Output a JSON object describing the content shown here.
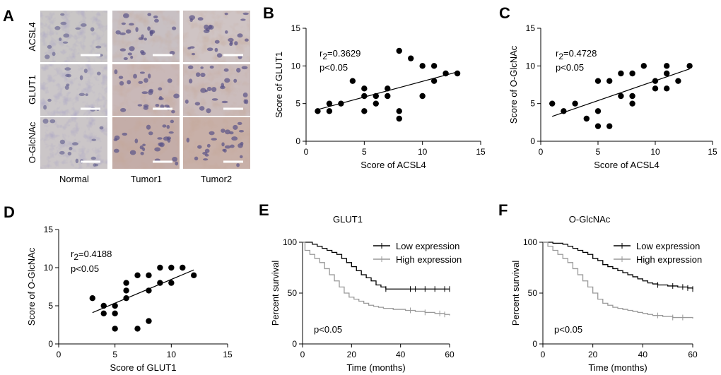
{
  "panel_labels": {
    "A": "A",
    "B": "B",
    "C": "C",
    "D": "D",
    "E": "E",
    "F": "F"
  },
  "histology": {
    "rows": [
      "ACSL4",
      "GLUT1",
      "O-GlcNAc"
    ],
    "columns": [
      "Normal",
      "Tumor1",
      "Tumor2"
    ]
  },
  "chart_data": [
    {
      "id": "B",
      "type": "scatter",
      "xlabel": "Score of ACSL4",
      "ylabel": "Score of GLUT1",
      "xlim": [
        0,
        15
      ],
      "ylim": [
        0,
        15
      ],
      "xticks": [
        0,
        5,
        10,
        15
      ],
      "yticks": [
        0,
        5,
        10,
        15
      ],
      "xtick_labels": [
        "0",
        "5",
        "10",
        "15"
      ],
      "ytick_labels": [
        "0",
        "5",
        "10",
        "15"
      ],
      "annotation": {
        "r_label": "r",
        "r_sub": "2",
        "r_value": "=0.3629",
        "p": "p<0.05"
      },
      "points": [
        [
          1,
          4
        ],
        [
          2,
          4
        ],
        [
          2,
          5
        ],
        [
          3,
          5
        ],
        [
          4,
          8
        ],
        [
          5,
          4
        ],
        [
          5,
          6
        ],
        [
          5,
          7
        ],
        [
          6,
          5
        ],
        [
          6,
          6
        ],
        [
          7,
          6
        ],
        [
          7,
          7
        ],
        [
          8,
          3
        ],
        [
          8,
          4
        ],
        [
          8,
          12
        ],
        [
          9,
          11
        ],
        [
          10,
          6
        ],
        [
          10,
          10
        ],
        [
          11,
          8
        ],
        [
          11,
          10
        ],
        [
          12,
          9
        ],
        [
          13,
          9
        ]
      ],
      "fit": [
        [
          1,
          4.2
        ],
        [
          13,
          9.2
        ]
      ]
    },
    {
      "id": "C",
      "type": "scatter",
      "xlabel": "Score of ACSL4",
      "ylabel": "Score of O-GlcNAc",
      "xlim": [
        0,
        15
      ],
      "ylim": [
        0,
        15
      ],
      "xticks": [
        0,
        5,
        10,
        15
      ],
      "yticks": [
        0,
        5,
        10,
        15
      ],
      "xtick_labels": [
        "0",
        "5",
        "10",
        "15"
      ],
      "ytick_labels": [
        "0",
        "5",
        "10",
        "15"
      ],
      "annotation": {
        "r_label": "r",
        "r_sub": "2",
        "r_value": "=0.4728",
        "p": "p<0.05"
      },
      "points": [
        [
          1,
          5
        ],
        [
          2,
          4
        ],
        [
          3,
          5
        ],
        [
          4,
          3
        ],
        [
          5,
          2
        ],
        [
          5,
          4
        ],
        [
          5,
          8
        ],
        [
          6,
          2
        ],
        [
          6,
          8
        ],
        [
          7,
          6
        ],
        [
          7,
          9
        ],
        [
          8,
          5
        ],
        [
          8,
          6
        ],
        [
          8,
          9
        ],
        [
          9,
          10
        ],
        [
          10,
          7
        ],
        [
          10,
          8
        ],
        [
          11,
          7
        ],
        [
          11,
          9
        ],
        [
          11,
          10
        ],
        [
          12,
          8
        ],
        [
          13,
          10
        ]
      ],
      "fit": [
        [
          1,
          3.3
        ],
        [
          13,
          9.6
        ]
      ]
    },
    {
      "id": "D",
      "type": "scatter",
      "xlabel": "Score of GLUT1",
      "ylabel": "Score of O-GlcNAc",
      "xlim": [
        0,
        15
      ],
      "ylim": [
        0,
        15
      ],
      "xticks": [
        0,
        5,
        10,
        15
      ],
      "yticks": [
        0,
        5,
        10,
        15
      ],
      "xtick_labels": [
        "0",
        "5",
        "10",
        "15"
      ],
      "ytick_labels": [
        "0",
        "5",
        "10",
        "15"
      ],
      "annotation": {
        "r_label": "r",
        "r_sub": "2",
        "r_value": "=0.4188",
        "p": "p<0.05"
      },
      "points": [
        [
          3,
          6
        ],
        [
          4,
          4
        ],
        [
          4,
          5
        ],
        [
          5,
          2
        ],
        [
          5,
          4
        ],
        [
          5,
          5
        ],
        [
          6,
          6
        ],
        [
          6,
          7
        ],
        [
          6,
          8
        ],
        [
          7,
          2
        ],
        [
          7,
          9
        ],
        [
          8,
          3
        ],
        [
          8,
          7
        ],
        [
          8,
          9
        ],
        [
          9,
          8
        ],
        [
          9,
          10
        ],
        [
          10,
          8
        ],
        [
          10,
          10
        ],
        [
          11,
          10
        ],
        [
          12,
          9
        ]
      ],
      "fit": [
        [
          3,
          4.1
        ],
        [
          12,
          9.7
        ]
      ]
    },
    {
      "id": "E",
      "type": "line",
      "title": "GLUT1",
      "xlabel": "Time (months)",
      "ylabel": "Percent survival",
      "xlim": [
        0,
        60
      ],
      "ylim": [
        0,
        100
      ],
      "xticks": [
        0,
        20,
        40,
        60
      ],
      "yticks": [
        0,
        50,
        100
      ],
      "xtick_labels": [
        "0",
        "20",
        "40",
        "60"
      ],
      "ytick_labels": [
        "0",
        "50",
        "100"
      ],
      "p": "p<0.05",
      "series": [
        {
          "name": "Low expression",
          "color": "#000000",
          "steps": [
            [
              0,
              100
            ],
            [
              2,
              100
            ],
            [
              4,
              98
            ],
            [
              6,
              96
            ],
            [
              8,
              94
            ],
            [
              10,
              92
            ],
            [
              12,
              90
            ],
            [
              14,
              88
            ],
            [
              16,
              84
            ],
            [
              18,
              80
            ],
            [
              20,
              76
            ],
            [
              22,
              72
            ],
            [
              24,
              68
            ],
            [
              26,
              65
            ],
            [
              28,
              62
            ],
            [
              30,
              58
            ],
            [
              32,
              56
            ],
            [
              34,
              54
            ],
            [
              60,
              54
            ]
          ],
          "censors": [
            34,
            44,
            46,
            50,
            54,
            58,
            60
          ]
        },
        {
          "name": "High expression",
          "color": "#999999",
          "steps": [
            [
              0,
              100
            ],
            [
              1,
              92
            ],
            [
              3,
              88
            ],
            [
              5,
              84
            ],
            [
              7,
              80
            ],
            [
              9,
              74
            ],
            [
              11,
              68
            ],
            [
              13,
              62
            ],
            [
              15,
              56
            ],
            [
              17,
              50
            ],
            [
              19,
              46
            ],
            [
              21,
              44
            ],
            [
              23,
              42
            ],
            [
              25,
              40
            ],
            [
              27,
              38
            ],
            [
              29,
              37
            ],
            [
              31,
              36
            ],
            [
              33,
              35
            ],
            [
              35,
              35
            ],
            [
              37,
              34
            ],
            [
              39,
              34
            ],
            [
              42,
              33
            ],
            [
              46,
              32
            ],
            [
              50,
              31
            ],
            [
              54,
              30
            ],
            [
              58,
              29
            ],
            [
              60,
              28
            ]
          ],
          "censors": [
            44,
            50,
            56,
            58
          ]
        }
      ]
    },
    {
      "id": "F",
      "type": "line",
      "title": "O-GlcNAc",
      "xlabel": "Time (months)",
      "ylabel": "Percent survival",
      "xlim": [
        0,
        60
      ],
      "ylim": [
        0,
        100
      ],
      "xticks": [
        0,
        20,
        40,
        60
      ],
      "yticks": [
        0,
        50,
        100
      ],
      "xtick_labels": [
        "0",
        "20",
        "40",
        "60"
      ],
      "ytick_labels": [
        "0",
        "50",
        "100"
      ],
      "p": "p<0.05",
      "series": [
        {
          "name": "Low expression",
          "color": "#000000",
          "steps": [
            [
              0,
              100
            ],
            [
              4,
              99
            ],
            [
              8,
              98
            ],
            [
              10,
              96
            ],
            [
              12,
              94
            ],
            [
              14,
              92
            ],
            [
              16,
              90
            ],
            [
              18,
              88
            ],
            [
              20,
              84
            ],
            [
              22,
              82
            ],
            [
              24,
              78
            ],
            [
              26,
              76
            ],
            [
              28,
              74
            ],
            [
              30,
              72
            ],
            [
              32,
              70
            ],
            [
              34,
              68
            ],
            [
              36,
              66
            ],
            [
              38,
              64
            ],
            [
              40,
              62
            ],
            [
              42,
              60
            ],
            [
              44,
              59
            ],
            [
              46,
              58
            ],
            [
              50,
              57
            ],
            [
              54,
              56
            ],
            [
              58,
              55
            ],
            [
              60,
              54
            ]
          ],
          "censors": [
            46,
            52,
            56,
            58,
            60
          ]
        },
        {
          "name": "High expression",
          "color": "#999999",
          "steps": [
            [
              0,
              100
            ],
            [
              2,
              96
            ],
            [
              4,
              92
            ],
            [
              6,
              88
            ],
            [
              8,
              84
            ],
            [
              10,
              80
            ],
            [
              12,
              74
            ],
            [
              14,
              68
            ],
            [
              16,
              62
            ],
            [
              18,
              56
            ],
            [
              20,
              50
            ],
            [
              22,
              44
            ],
            [
              24,
              40
            ],
            [
              26,
              38
            ],
            [
              28,
              36
            ],
            [
              30,
              35
            ],
            [
              32,
              34
            ],
            [
              34,
              33
            ],
            [
              36,
              32
            ],
            [
              38,
              31
            ],
            [
              40,
              30
            ],
            [
              42,
              29
            ],
            [
              44,
              28
            ],
            [
              46,
              28
            ],
            [
              48,
              27
            ],
            [
              52,
              26
            ],
            [
              56,
              26
            ],
            [
              60,
              25
            ]
          ],
          "censors": [
            46,
            52,
            56
          ]
        }
      ]
    }
  ]
}
